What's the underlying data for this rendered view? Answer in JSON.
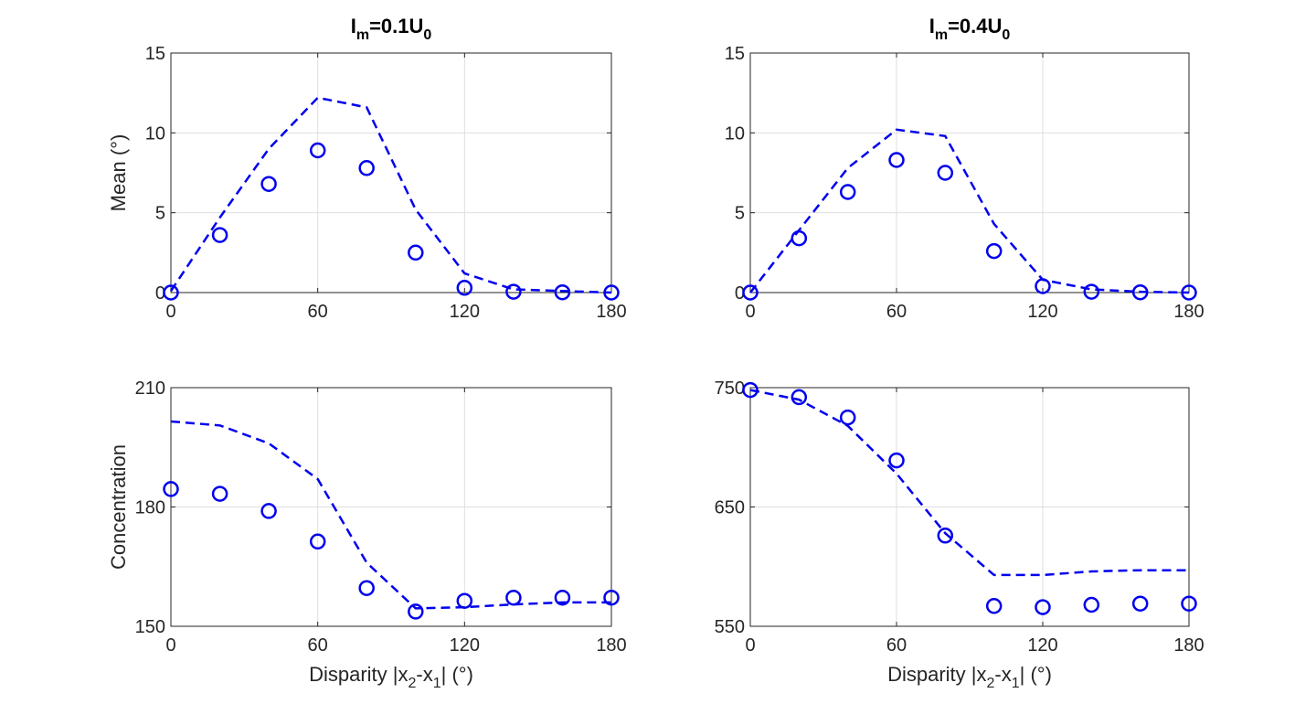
{
  "figure": {
    "colors": {
      "series": "#0000ee",
      "axis": "#262626",
      "grid": "#dfdfdf",
      "background": "#ffffff"
    }
  },
  "chart_data": [
    {
      "id": "p11",
      "type": "line",
      "title": {
        "base": "I",
        "sub1": "m",
        "mid": "=0.1U",
        "sub2": "0"
      },
      "xlabel": "",
      "ylabel": "Mean (°)",
      "xlim": [
        0,
        180
      ],
      "ylim": [
        0,
        15
      ],
      "xticks": [
        0,
        60,
        120,
        180
      ],
      "yticks": [
        0,
        5,
        10,
        15
      ],
      "grid": true,
      "x": [
        0,
        20,
        40,
        60,
        80,
        100,
        120,
        140,
        160,
        180
      ],
      "series": [
        {
          "style": "dashed",
          "color": "#0000ee",
          "values": [
            0.1,
            4.7,
            9.0,
            12.2,
            11.6,
            5.2,
            1.2,
            0.2,
            0.1,
            0.0
          ]
        },
        {
          "style": "circle",
          "color": "#0000ee",
          "values": [
            0.0,
            3.6,
            6.8,
            8.9,
            7.8,
            2.5,
            0.3,
            0.05,
            0.02,
            0.0
          ]
        }
      ]
    },
    {
      "id": "p12",
      "type": "line",
      "title": {
        "base": "I",
        "sub1": "m",
        "mid": "=0.4U",
        "sub2": "0"
      },
      "xlabel": "",
      "ylabel": "",
      "xlim": [
        0,
        180
      ],
      "ylim": [
        0,
        15
      ],
      "xticks": [
        0,
        60,
        120,
        180
      ],
      "yticks": [
        0,
        5,
        10,
        15
      ],
      "grid": true,
      "x": [
        0,
        20,
        40,
        60,
        80,
        100,
        120,
        140,
        160,
        180
      ],
      "series": [
        {
          "style": "dashed",
          "color": "#0000ee",
          "values": [
            0.0,
            3.9,
            7.8,
            10.2,
            9.8,
            4.3,
            0.8,
            0.2,
            0.05,
            0.0
          ]
        },
        {
          "style": "circle",
          "color": "#0000ee",
          "values": [
            0.0,
            3.4,
            6.3,
            8.3,
            7.5,
            2.6,
            0.4,
            0.05,
            0.02,
            0.0
          ]
        }
      ]
    },
    {
      "id": "p21",
      "type": "line",
      "title": null,
      "xlabel": {
        "base": "Disparity |x",
        "sub1": "2",
        "mid": "-x",
        "sub2": "1",
        "tail": "| (°)"
      },
      "ylabel": "Concentration",
      "xlim": [
        0,
        180
      ],
      "ylim": [
        150,
        210
      ],
      "xticks": [
        0,
        60,
        120,
        180
      ],
      "yticks": [
        150,
        180,
        210
      ],
      "grid": true,
      "x": [
        0,
        20,
        40,
        60,
        80,
        100,
        120,
        140,
        160,
        180
      ],
      "series": [
        {
          "style": "dashed",
          "color": "#0000ee",
          "values": [
            201.5,
            200.5,
            196.0,
            187.0,
            166.0,
            154.5,
            154.8,
            155.5,
            156.0,
            156.0
          ]
        },
        {
          "style": "circle",
          "color": "#0000ee",
          "values": [
            184.5,
            183.3,
            179.0,
            171.3,
            159.6,
            153.7,
            156.4,
            157.2,
            157.2,
            157.2
          ]
        }
      ]
    },
    {
      "id": "p22",
      "type": "line",
      "title": null,
      "xlabel": {
        "base": "Disparity |x",
        "sub1": "2",
        "mid": "-x",
        "sub2": "1",
        "tail": "| (°)"
      },
      "ylabel": "",
      "xlim": [
        0,
        180
      ],
      "ylim": [
        550,
        750
      ],
      "xticks": [
        0,
        60,
        120,
        180
      ],
      "yticks": [
        550,
        650,
        750
      ],
      "grid": true,
      "x": [
        0,
        20,
        40,
        60,
        80,
        100,
        120,
        140,
        160,
        180
      ],
      "series": [
        {
          "style": "dashed",
          "color": "#0000ee",
          "values": [
            748,
            740,
            718,
            678,
            628,
            593,
            593,
            596,
            597,
            597
          ]
        },
        {
          "style": "circle",
          "color": "#0000ee",
          "values": [
            748,
            742,
            725,
            689,
            626,
            567,
            566,
            568,
            569,
            569
          ]
        }
      ]
    }
  ]
}
